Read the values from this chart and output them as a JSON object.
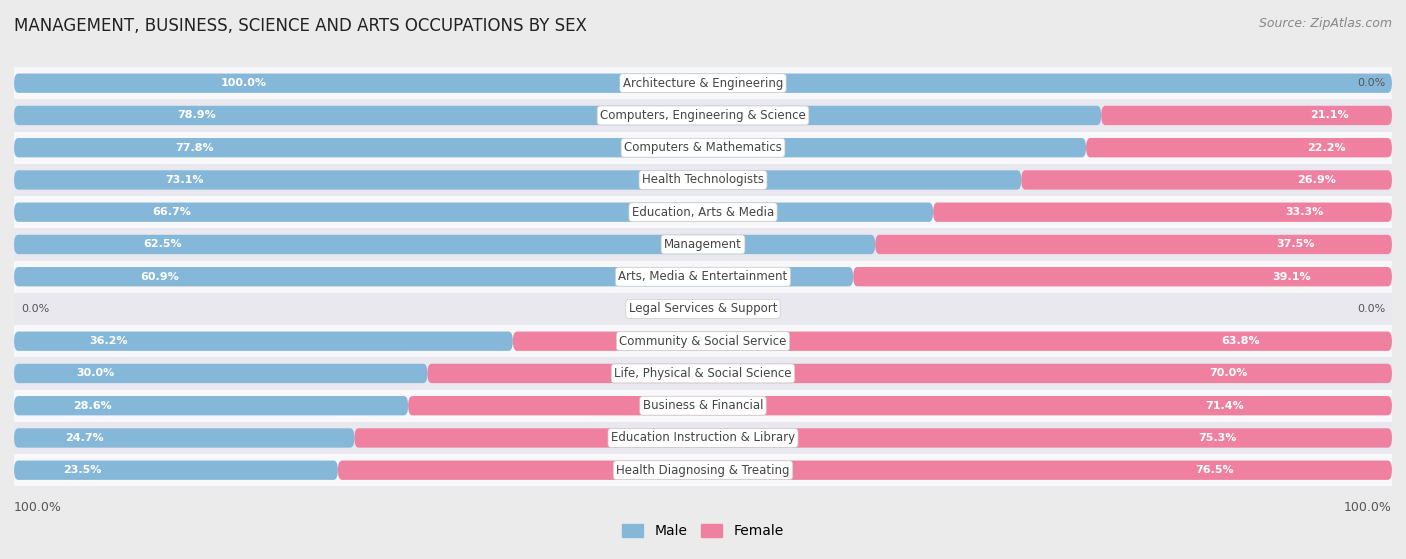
{
  "title": "MANAGEMENT, BUSINESS, SCIENCE AND ARTS OCCUPATIONS BY SEX",
  "source": "Source: ZipAtlas.com",
  "categories": [
    "Architecture & Engineering",
    "Computers, Engineering & Science",
    "Computers & Mathematics",
    "Health Technologists",
    "Education, Arts & Media",
    "Management",
    "Arts, Media & Entertainment",
    "Legal Services & Support",
    "Community & Social Service",
    "Life, Physical & Social Science",
    "Business & Financial",
    "Education Instruction & Library",
    "Health Diagnosing & Treating"
  ],
  "male_pct": [
    100.0,
    78.9,
    77.8,
    73.1,
    66.7,
    62.5,
    60.9,
    0.0,
    36.2,
    30.0,
    28.6,
    24.7,
    23.5
  ],
  "female_pct": [
    0.0,
    21.1,
    22.2,
    26.9,
    33.3,
    37.5,
    39.1,
    0.0,
    63.8,
    70.0,
    71.4,
    75.3,
    76.5
  ],
  "male_color": "#85b8d8",
  "female_color": "#f080a0",
  "bg_color": "#ebebeb",
  "row_even_color": "#f8f8fb",
  "row_odd_color": "#e8e8ee",
  "bar_height": 0.6,
  "label_threshold": 12.0
}
